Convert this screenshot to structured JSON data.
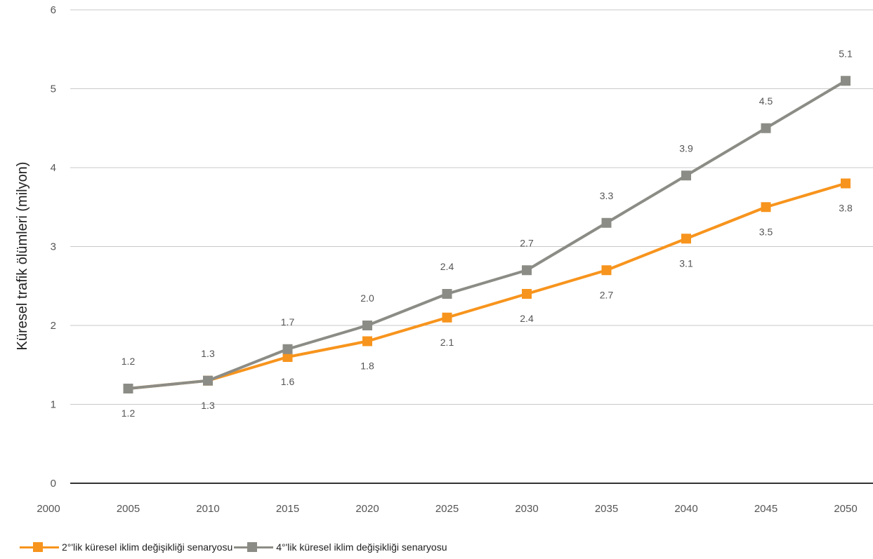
{
  "chart_data": {
    "type": "line",
    "title": "",
    "xlabel": "",
    "ylabel": "Küresel trafik ölümleri (milyon)",
    "xlim": [
      2000,
      2050
    ],
    "ylim": [
      0,
      6
    ],
    "x_ticks": [
      "2000",
      "2005",
      "2010",
      "2015",
      "2020",
      "2025",
      "2030",
      "2035",
      "2040",
      "2045",
      "2050"
    ],
    "y_ticks": [
      "0",
      "1",
      "2",
      "3",
      "4",
      "5",
      "6"
    ],
    "x": [
      2005,
      2010,
      2015,
      2020,
      2025,
      2030,
      2035,
      2040,
      2045,
      2050
    ],
    "grid": "horizontal",
    "legend_position": "bottom-left",
    "series": [
      {
        "name": "2°'lik küresel iklim değişikliği senaryosu",
        "color": "#f7941d",
        "values": [
          1.2,
          1.3,
          1.6,
          1.8,
          2.1,
          2.4,
          2.7,
          3.1,
          3.5,
          3.8
        ],
        "labels": [
          "1.2",
          "1.3",
          "1.6",
          "1.8",
          "2.1",
          "2.4",
          "2.7",
          "3.1",
          "3.5",
          "3.8"
        ]
      },
      {
        "name": "4°'lik küresel iklim değişikliği senaryosu",
        "color": "#8c8c86",
        "values": [
          1.2,
          1.3,
          1.7,
          2.0,
          2.4,
          2.7,
          3.3,
          3.9,
          4.5,
          5.1
        ],
        "labels": [
          "1.2",
          "1.3",
          "1.7",
          "2.0",
          "2.4",
          "2.7",
          "3.3",
          "3.9",
          "4.5",
          "5.1"
        ]
      }
    ]
  }
}
